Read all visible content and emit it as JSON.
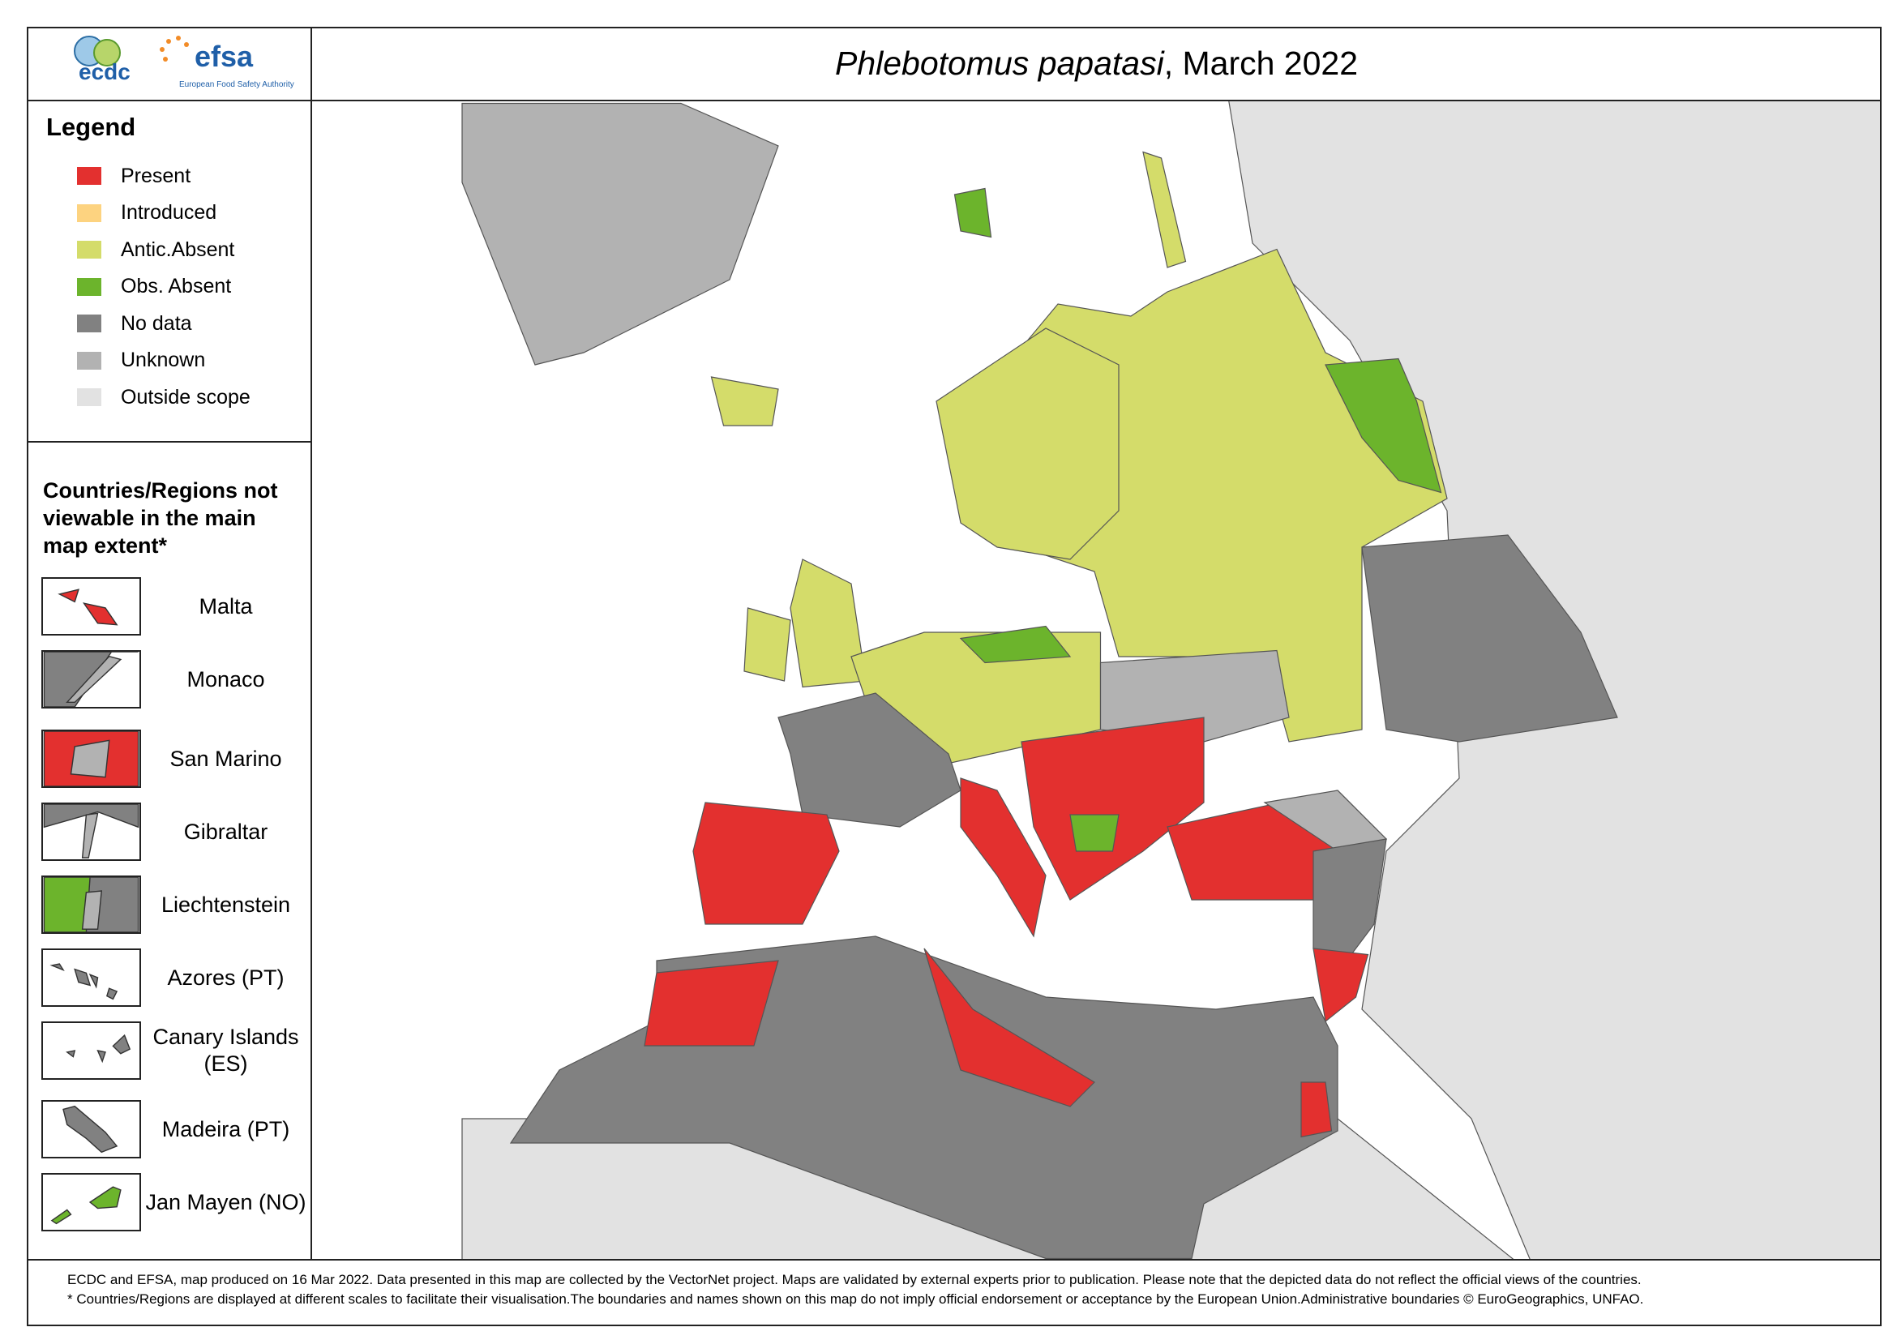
{
  "header": {
    "logos": {
      "ecdc": "ecdc",
      "efsa": "efsa",
      "efsa_caption": "European Food Safety Authority"
    },
    "title": {
      "species": "Phlebotomus papatasi",
      "suffix": ", March 2022"
    }
  },
  "legend": {
    "title": "Legend",
    "items": [
      {
        "label": "Present",
        "color": "#e3302f"
      },
      {
        "label": "Introduced",
        "color": "#fdd380"
      },
      {
        "label": "Antic.Absent",
        "color": "#d4dc6a"
      },
      {
        "label": "Obs. Absent",
        "color": "#6cb42c"
      },
      {
        "label": "No data",
        "color": "#818181"
      },
      {
        "label": "Unknown",
        "color": "#b2b2b2"
      },
      {
        "label": "Outside scope",
        "color": "#e2e2e2"
      }
    ]
  },
  "insets": {
    "title": "Countries/Regions not viewable in the main map extent*",
    "items": [
      "Malta",
      "Monaco",
      "San Marino",
      "Gibraltar",
      "Liechtenstein",
      "Azores (PT)",
      "Canary Islands (ES)",
      "Madeira (PT)",
      "Jan Mayen (NO)"
    ]
  },
  "footer": {
    "lines": [
      "ECDC and EFSA, map produced on 16 Mar 2022. Data presented in this map are collected by the VectorNet project. Maps are validated by external experts prior to publication. Please note that the depicted data do not reflect the official views of the countries.",
      "* Countries/Regions are displayed at different scales to facilitate their visualisation.The boundaries and names shown on this map do not imply official endorsement or acceptance by the European Union.Administrative boundaries © EuroGeographics, UNFAO."
    ]
  }
}
